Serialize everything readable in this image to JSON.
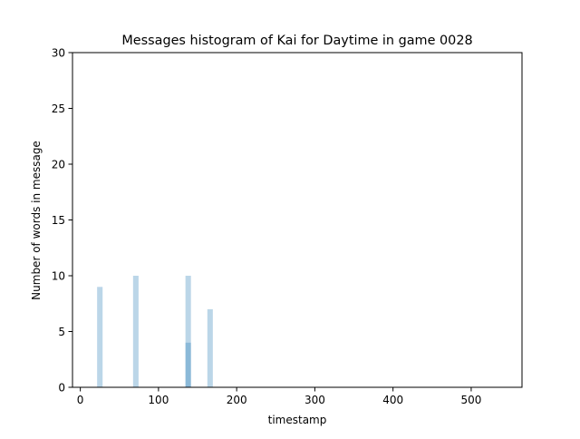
{
  "chart_data": {
    "type": "bar",
    "title": "Messages histogram of Kai for Daytime in game 0028",
    "xlabel": "timestamp",
    "ylabel": "Number of words in message",
    "xlim": [
      -10,
      565
    ],
    "ylim": [
      0,
      30
    ],
    "xticks": [
      0,
      100,
      200,
      300,
      400,
      500
    ],
    "yticks": [
      0,
      5,
      10,
      15,
      20,
      25,
      30
    ],
    "bar_width": 7,
    "grid": false,
    "legend": "none",
    "bars": [
      {
        "x": 25,
        "value": 9
      },
      {
        "x": 71,
        "value": 10
      },
      {
        "x": 138,
        "value": 10
      },
      {
        "x": 138,
        "value": 4
      },
      {
        "x": 166,
        "value": 7
      }
    ],
    "colors": {
      "bar": "#1f77b4",
      "bar_opacity": 0.3
    }
  }
}
